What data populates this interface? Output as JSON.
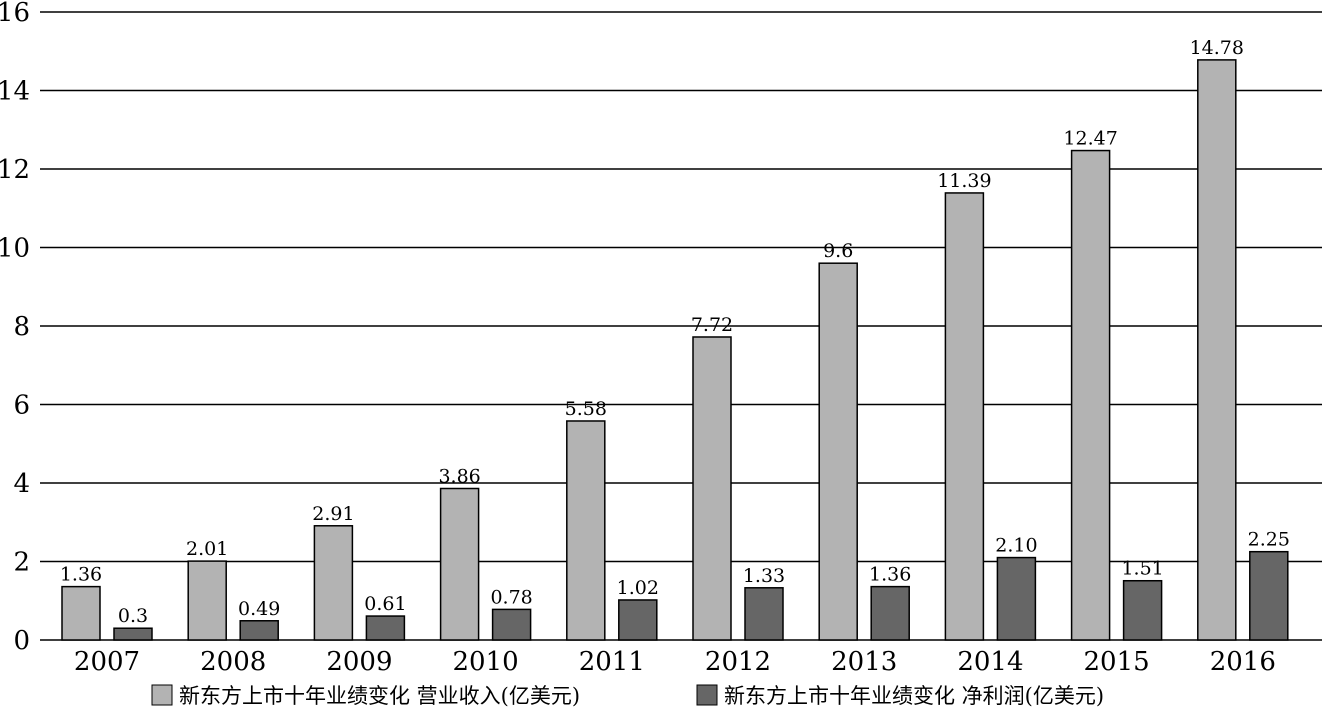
{
  "chart_data": {
    "type": "bar",
    "title": "",
    "xlabel": "",
    "ylabel": "",
    "ylim": [
      0,
      16
    ],
    "yticks": [
      0,
      2,
      4,
      6,
      8,
      10,
      12,
      14,
      16
    ],
    "grid": true,
    "legend_position": "bottom",
    "categories": [
      "2007",
      "2008",
      "2009",
      "2010",
      "2011",
      "2012",
      "2013",
      "2014",
      "2015",
      "2016"
    ],
    "series": [
      {
        "name": "新东方上市十年业绩变化 营业收入(亿美元)",
        "color": "#b3b3b3",
        "values": [
          1.36,
          2.01,
          2.91,
          3.86,
          5.58,
          7.72,
          9.6,
          11.39,
          12.47,
          14.78
        ],
        "labels": [
          "1.36",
          "2.01",
          "2.91",
          "3.86",
          "5.58",
          "7.72",
          "9.6",
          "11.39",
          "12.47",
          "14.78"
        ]
      },
      {
        "name": "新东方上市十年业绩变化 净利润(亿美元)",
        "color": "#666666",
        "values": [
          0.3,
          0.49,
          0.61,
          0.78,
          1.02,
          1.33,
          1.36,
          2.1,
          1.51,
          2.25
        ],
        "labels": [
          "0.3",
          "0.49",
          "0.61",
          "0.78",
          "1.02",
          "1.33",
          "1.36",
          "2.10",
          "1.51",
          "2.25"
        ]
      }
    ]
  }
}
